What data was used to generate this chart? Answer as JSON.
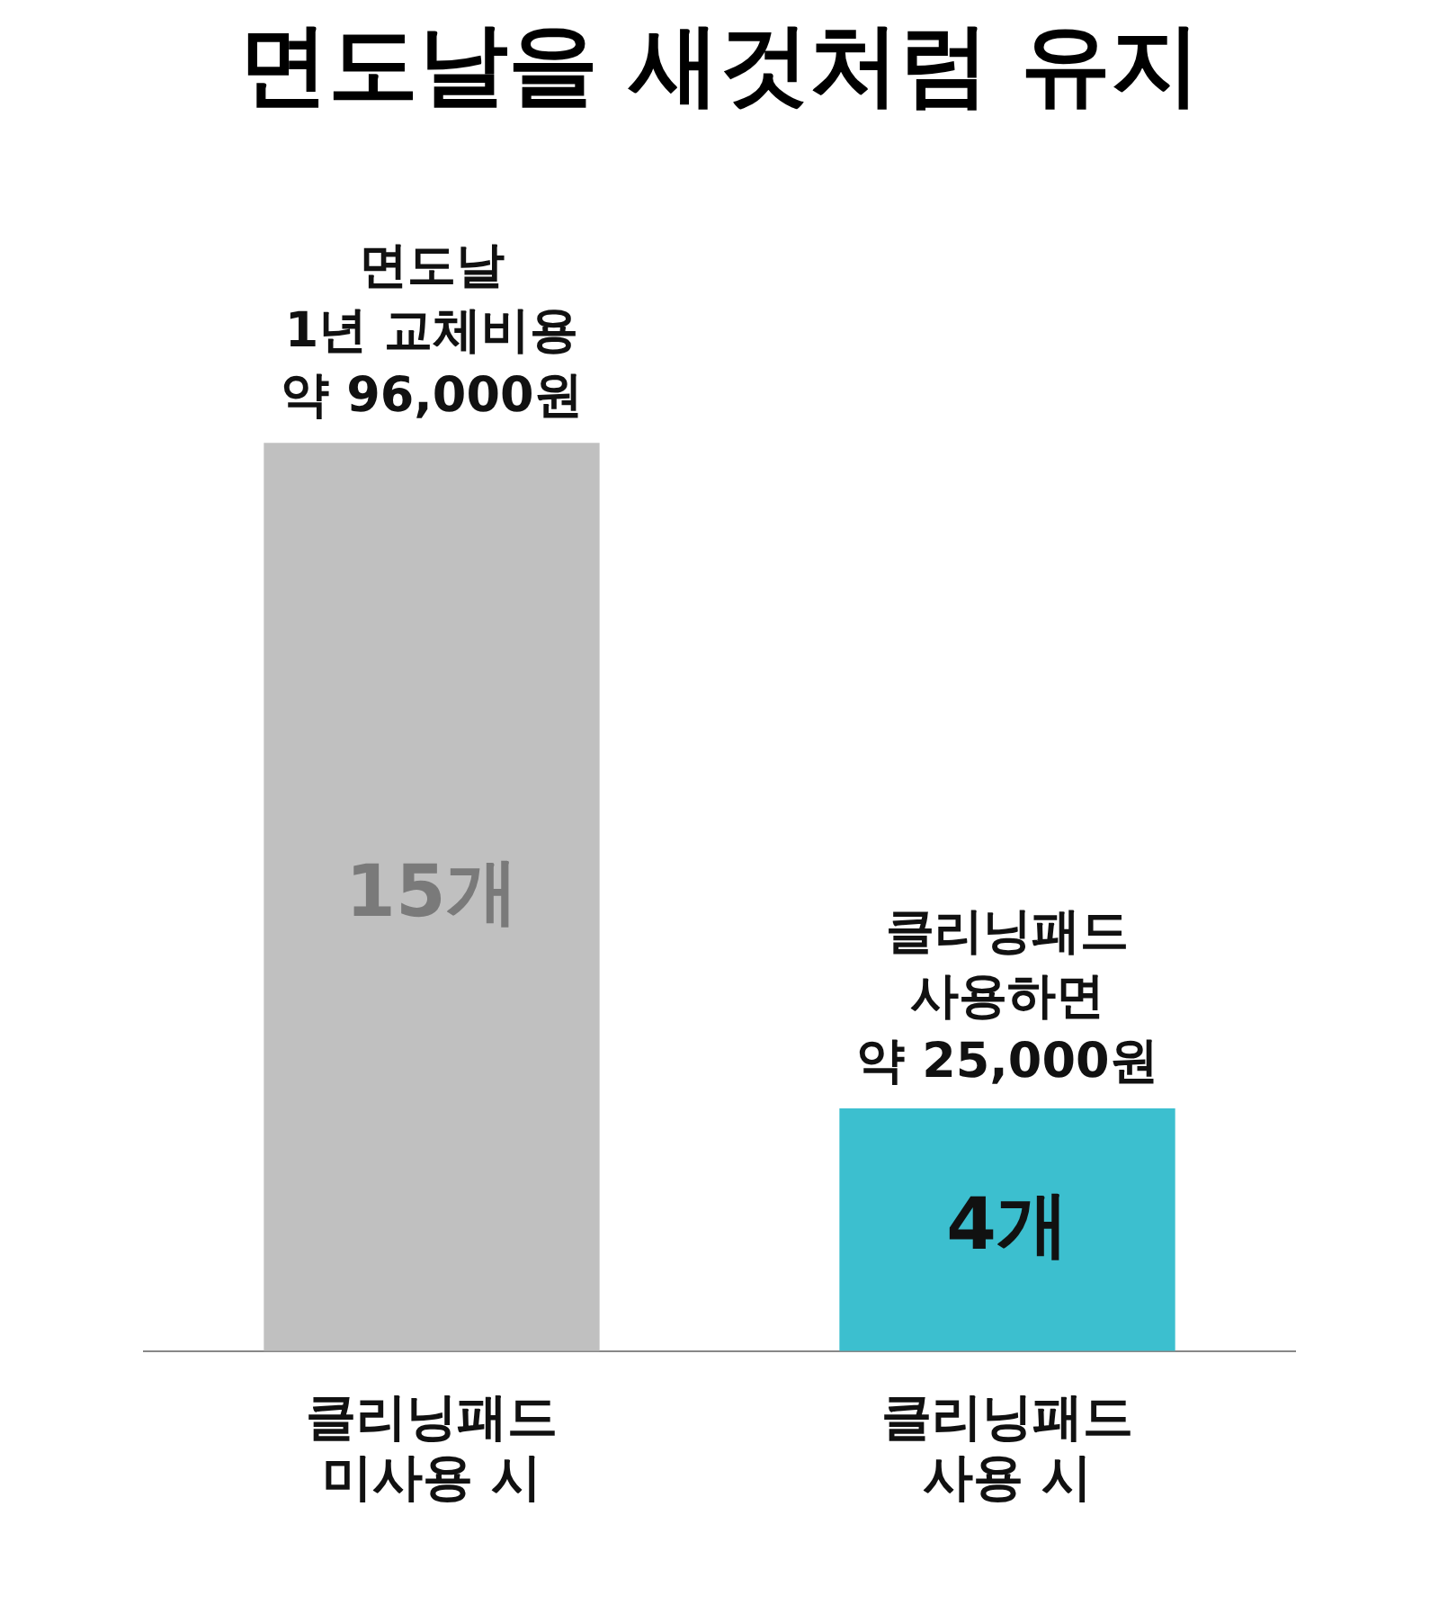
{
  "chart_data": {
    "type": "bar",
    "title": "면도날을 새것처럼 유지",
    "tick_labels": "x",
    "categories": [
      "클리닝패드\n미사용 시",
      "클리닝패드\n사용 시"
    ],
    "values": [
      15,
      4
    ],
    "value_labels": [
      "15개",
      "4개"
    ],
    "colors": [
      "#c0c0c0",
      "#3cbfcf"
    ],
    "annotations": [
      {
        "text": "면도날\n1년 교체비용\n약 96,000원",
        "x": "클리닝패드\n미사용 시",
        "y": 15
      },
      {
        "text": "클리닝패드\n사용하면\n약 25,000원",
        "x": "클리닝패드\n사용 시",
        "y": 4
      }
    ],
    "grid": false,
    "legend": false
  }
}
